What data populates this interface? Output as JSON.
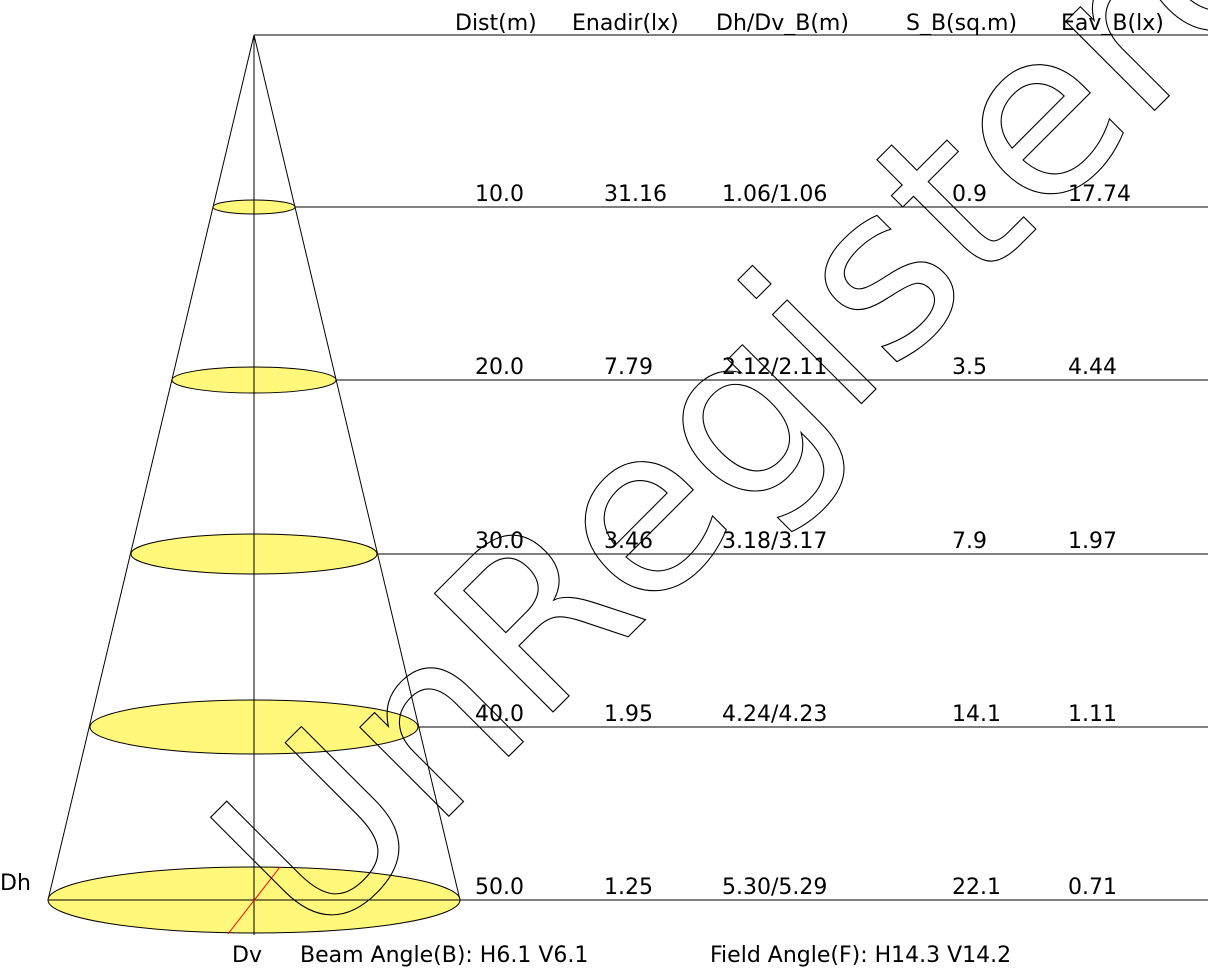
{
  "columns": [
    "Dist(m)",
    "Enadir(lx)",
    "Dh/Dv_B(m)",
    "S_B(sq.m)",
    "Eav_B(lx)"
  ],
  "rows": [
    {
      "dist": "10.0",
      "enadir": "31.16",
      "dhdv": "1.06/1.06",
      "s": "0.9",
      "eav": "17.74"
    },
    {
      "dist": "20.0",
      "enadir": "7.79",
      "dhdv": "2.12/2.11",
      "s": "3.5",
      "eav": "4.44"
    },
    {
      "dist": "30.0",
      "enadir": "3.46",
      "dhdv": "3.18/3.17",
      "s": "7.9",
      "eav": "1.97"
    },
    {
      "dist": "40.0",
      "enadir": "1.95",
      "dhdv": "4.24/4.23",
      "s": "14.1",
      "eav": "1.11"
    },
    {
      "dist": "50.0",
      "enadir": "1.25",
      "dhdv": "5.30/5.29",
      "s": "22.1",
      "eav": "0.71"
    }
  ],
  "labels": {
    "dh": "Dh",
    "dv": "Dv"
  },
  "footer": {
    "beam": "Beam Angle(B): H6.1 V6.1",
    "field": "Field Angle(F): H14.3 V14.2"
  },
  "watermark": "UnRegistered",
  "colors": {
    "ellipse_fill": "#fff87a",
    "line": "#000000",
    "dv_line": "#ff0000"
  }
}
